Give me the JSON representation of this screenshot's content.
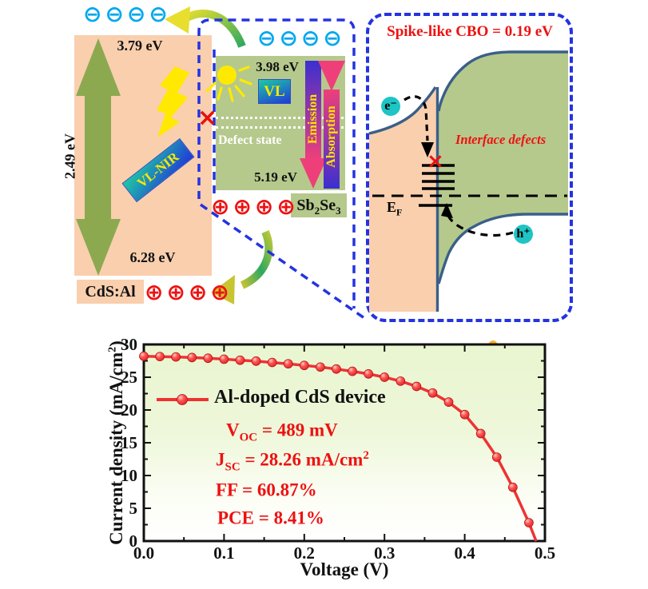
{
  "colors": {
    "peach": "#f9cfae",
    "olive_green": "#b5c98c",
    "dash_blue": "#2433e0",
    "electron_cyan": "#00a8ee",
    "hole_red": "#ee1111",
    "band_edge_blue": "#3a5f88",
    "accent_red": "#ee1111",
    "curve_red": "#ee3333",
    "sun_orange": "#ffb41e",
    "sun_yellow": "#ffe900",
    "arrow_olive": "#8ca950"
  },
  "left_panel": {
    "electrons": "⊖⊖⊖⊖",
    "cb_energy": "3.79 eV",
    "gap_energy": "2.49 eV",
    "vb_energy": "6.28 eV",
    "photon_label": "VL-NIR",
    "material": "CdS:Al",
    "holes": "⊕⊕⊕⊕"
  },
  "middle_panel": {
    "electrons": "⊖⊖⊖⊖",
    "cb_energy": "3.98 eV",
    "photon_label": "VL",
    "defect_label": "Defect state",
    "emission_label": "Emission",
    "absorption_label": "Absorption",
    "vb_energy": "5.19 eV",
    "material": {
      "m1": "Sb",
      "s1": "2",
      "m2": "Se",
      "s2": "3"
    },
    "holes": "⊕⊕⊕⊕"
  },
  "right_panel": {
    "title": "Spike-like CBO = 0.19 eV",
    "electron_label": "e⁻",
    "hole_label": "h⁺",
    "interface_label": "Interface defects",
    "fermi": {
      "main": "E",
      "sub": "F"
    }
  },
  "chart": {
    "legend_label": "Al-doped CdS device",
    "xlabel": "Voltage (V)",
    "ylabel_parts": {
      "pre": "Current density (mA/cm",
      "sup": "2",
      "post": ")"
    },
    "annotations": [
      {
        "pre": "V",
        "sub": "OC",
        "post": " = 489 mV",
        "sup": ""
      },
      {
        "pre": "J",
        "sub": "SC",
        "post": " = 28.26 mA/cm",
        "sup": "2"
      },
      {
        "pre": "FF = 60.87%",
        "sub": "",
        "post": "",
        "sup": ""
      },
      {
        "pre": "PCE = 8.41%",
        "sub": "",
        "post": "",
        "sup": ""
      }
    ]
  },
  "chart_data": {
    "type": "line",
    "title": "",
    "xlabel": "Voltage (V)",
    "ylabel": "Current density (mA/cm²)",
    "xlim": [
      0.0,
      0.5
    ],
    "ylim": [
      0,
      30
    ],
    "x_ticks": [
      "0.0",
      "0.1",
      "0.2",
      "0.3",
      "0.4",
      "0.5"
    ],
    "y_ticks": [
      0,
      5,
      10,
      15,
      20,
      25,
      30
    ],
    "x_minor_step": 0.05,
    "y_minor_step": 2.5,
    "grid": false,
    "legend_position": "inside upper-left",
    "series": [
      {
        "name": "Al-doped CdS device",
        "color": "#ee3333",
        "marker": "circle",
        "x": [
          0.0,
          0.02,
          0.04,
          0.06,
          0.08,
          0.1,
          0.12,
          0.14,
          0.16,
          0.18,
          0.2,
          0.22,
          0.24,
          0.26,
          0.28,
          0.3,
          0.32,
          0.34,
          0.36,
          0.38,
          0.4,
          0.42,
          0.44,
          0.46,
          0.48,
          0.489
        ],
        "y": [
          28.2,
          28.15,
          28.1,
          28.0,
          27.9,
          27.75,
          27.6,
          27.45,
          27.25,
          27.05,
          26.8,
          26.55,
          26.25,
          25.9,
          25.5,
          25.0,
          24.4,
          23.6,
          22.6,
          21.2,
          19.3,
          16.4,
          12.8,
          8.2,
          2.8,
          0.0
        ]
      }
    ],
    "annotations": [
      "VOC = 489 mV",
      "JSC = 28.26 mA/cm²",
      "FF = 60.87%",
      "PCE = 8.41%"
    ]
  }
}
